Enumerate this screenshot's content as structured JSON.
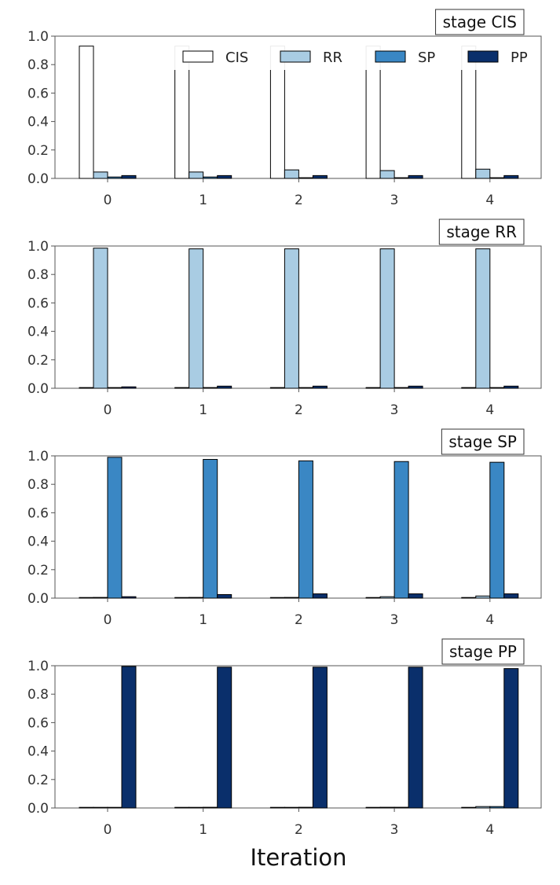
{
  "chart_data": {
    "type": "bar",
    "xlabel": "Iteration",
    "categories": [
      "0",
      "1",
      "2",
      "3",
      "4"
    ],
    "ylim": [
      0,
      1.0
    ],
    "yticks": [
      "0.0",
      "0.2",
      "0.4",
      "0.6",
      "0.8",
      "1.0"
    ],
    "grid": false,
    "legend": {
      "placement": "top-right of first panel",
      "entries": [
        "CIS",
        "RR",
        "SP",
        "PP"
      ]
    },
    "colors": {
      "CIS": "#ffffff",
      "RR": "#a9cce3",
      "SP": "#3a87c4",
      "PP": "#0a2f6b"
    },
    "panels": [
      {
        "label": "stage CIS",
        "series": [
          {
            "name": "CIS",
            "values": [
              0.93,
              0.93,
              0.93,
              0.93,
              0.93
            ]
          },
          {
            "name": "RR",
            "values": [
              0.045,
              0.045,
              0.06,
              0.055,
              0.065
            ]
          },
          {
            "name": "SP",
            "values": [
              0.01,
              0.01,
              0.005,
              0.005,
              0.005
            ]
          },
          {
            "name": "PP",
            "values": [
              0.02,
              0.02,
              0.02,
              0.02,
              0.02
            ]
          }
        ]
      },
      {
        "label": "stage RR",
        "series": [
          {
            "name": "CIS",
            "values": [
              0.005,
              0.005,
              0.005,
              0.005,
              0.005
            ]
          },
          {
            "name": "RR",
            "values": [
              0.985,
              0.98,
              0.98,
              0.98,
              0.98
            ]
          },
          {
            "name": "SP",
            "values": [
              0.005,
              0.005,
              0.005,
              0.005,
              0.005
            ]
          },
          {
            "name": "PP",
            "values": [
              0.01,
              0.015,
              0.015,
              0.015,
              0.015
            ]
          }
        ]
      },
      {
        "label": "stage SP",
        "series": [
          {
            "name": "CIS",
            "values": [
              0.002,
              0.002,
              0.002,
              0.002,
              0.002
            ]
          },
          {
            "name": "RR",
            "values": [
              0.005,
              0.005,
              0.005,
              0.01,
              0.015
            ]
          },
          {
            "name": "SP",
            "values": [
              0.99,
              0.975,
              0.965,
              0.96,
              0.955
            ]
          },
          {
            "name": "PP",
            "values": [
              0.01,
              0.025,
              0.03,
              0.03,
              0.03
            ]
          }
        ]
      },
      {
        "label": "stage PP",
        "series": [
          {
            "name": "CIS",
            "values": [
              0.002,
              0.002,
              0.002,
              0.002,
              0.002
            ]
          },
          {
            "name": "RR",
            "values": [
              0.002,
              0.003,
              0.003,
              0.005,
              0.01
            ]
          },
          {
            "name": "SP",
            "values": [
              0.002,
              0.005,
              0.005,
              0.005,
              0.01
            ]
          },
          {
            "name": "PP",
            "values": [
              0.995,
              0.99,
              0.99,
              0.99,
              0.98
            ]
          }
        ]
      }
    ]
  }
}
